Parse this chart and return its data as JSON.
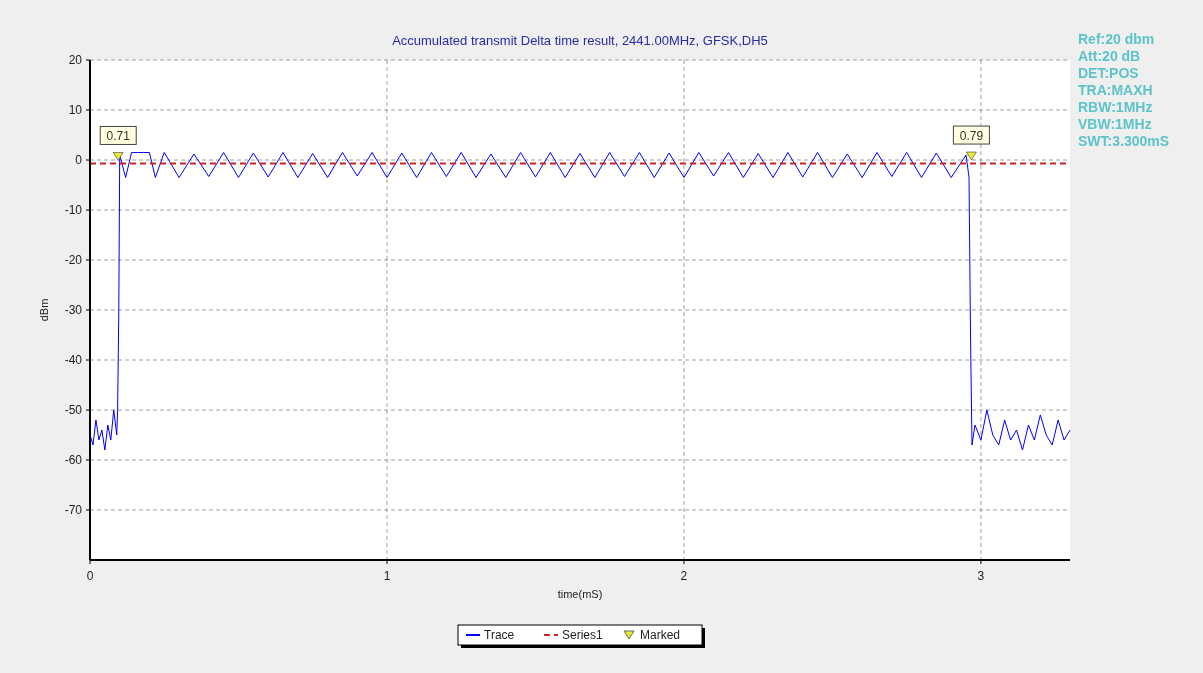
{
  "chart_data": {
    "type": "line",
    "title": "Accumulated transmit Delta time result, 2441.00MHz, GFSK,DH5",
    "xlabel": "time(mS)",
    "ylabel": "dBm",
    "xlim": [
      0,
      3.3
    ],
    "xticks": [
      0,
      1,
      2,
      3
    ],
    "ylim": [
      -80,
      20
    ],
    "yticks": [
      20,
      10,
      0,
      -10,
      -20,
      -30,
      -40,
      -50,
      -60,
      -70
    ],
    "grid": true,
    "legend": "bottom",
    "annotations": [
      "Ref:20 dbm",
      "Att:20 dB",
      "DET:POS",
      "TRA:MAXH",
      "RBW:1MHz",
      "VBW:1MHz",
      "SWT:3.300mS"
    ],
    "series": [
      {
        "name": "Trace",
        "color": "#0000ff",
        "line_style": "solid",
        "x": [
          0,
          0.01,
          0.02,
          0.03,
          0.04,
          0.05,
          0.06,
          0.07,
          0.08,
          0.09,
          0.093,
          0.097,
          0.1,
          0.12,
          0.14,
          0.16,
          0.18,
          0.2,
          0.22,
          0.25,
          0.3,
          0.35,
          0.4,
          0.45,
          0.5,
          0.55,
          0.6,
          0.65,
          0.7,
          0.75,
          0.8,
          0.85,
          0.9,
          0.95,
          1.0,
          1.05,
          1.1,
          1.15,
          1.2,
          1.25,
          1.3,
          1.35,
          1.4,
          1.45,
          1.5,
          1.55,
          1.6,
          1.65,
          1.7,
          1.75,
          1.8,
          1.85,
          1.9,
          1.95,
          2.0,
          2.05,
          2.1,
          2.15,
          2.2,
          2.25,
          2.3,
          2.35,
          2.4,
          2.45,
          2.5,
          2.55,
          2.6,
          2.65,
          2.7,
          2.75,
          2.8,
          2.85,
          2.9,
          2.95,
          2.96,
          2.965,
          2.97,
          2.98,
          3.0,
          3.02,
          3.04,
          3.06,
          3.08,
          3.1,
          3.12,
          3.14,
          3.16,
          3.18,
          3.2,
          3.22,
          3.24,
          3.26,
          3.28,
          3.3
        ],
        "values": [
          -55,
          -57,
          -52,
          -56,
          -54,
          -58,
          -53,
          -56,
          -50,
          -55,
          -50,
          -30,
          1,
          -3.5,
          1.5,
          1.5,
          1.5,
          1.5,
          -3.5,
          1.5,
          -3.5,
          1.2,
          -3.3,
          1.5,
          -3.5,
          1.4,
          -3.4,
          1.5,
          -3.5,
          1.3,
          -3.5,
          1.5,
          -3.2,
          1.5,
          -3.5,
          1.4,
          -3.5,
          1.5,
          -3.3,
          1.5,
          -3.5,
          1.2,
          -3.5,
          1.5,
          -3.4,
          1.5,
          -3.5,
          1.3,
          -3.5,
          1.5,
          -3.3,
          1.5,
          -3.5,
          1.4,
          -3.5,
          1.5,
          -3.2,
          1.5,
          -3.5,
          1.3,
          -3.5,
          1.5,
          -3.4,
          1.5,
          -3.5,
          1.2,
          -3.5,
          1.5,
          -3.3,
          1.5,
          -3.5,
          1.4,
          -3.5,
          1,
          -3.5,
          -35,
          -57,
          -53,
          -56,
          -50,
          -55,
          -57,
          -52,
          -56,
          -54,
          -58,
          -53,
          -56,
          -51,
          -55,
          -57,
          -52,
          -56,
          -54
        ]
      },
      {
        "name": "Series1",
        "color": "#cc2222",
        "line_style": "dashed",
        "x": [
          0,
          3.3
        ],
        "values": [
          -0.7,
          -0.7
        ]
      },
      {
        "name": "Marked",
        "type": "scatter",
        "color": "#e8e830",
        "marker": "triangle",
        "x": [
          0.095,
          2.968
        ],
        "values": [
          0.71,
          0.79
        ],
        "value_labels": [
          "0.71",
          "0.79"
        ]
      }
    ]
  }
}
